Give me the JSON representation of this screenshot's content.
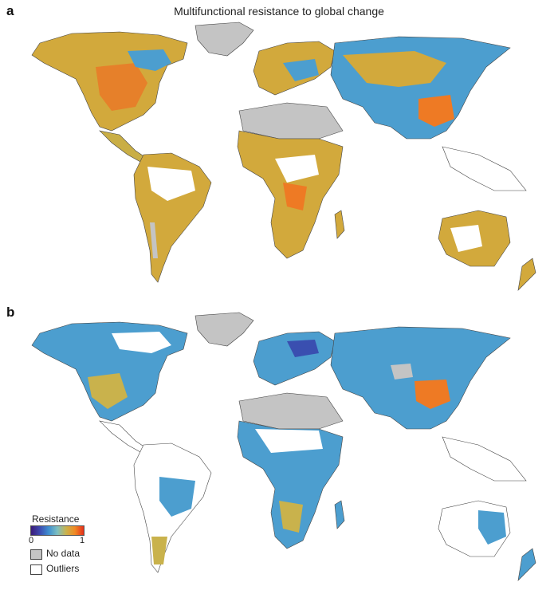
{
  "panels": [
    {
      "letter": "a",
      "title": "Multifunctional resistance to global change"
    },
    {
      "letter": "b",
      "title": ""
    }
  ],
  "legend": {
    "title": "Resistance",
    "min_label": "0",
    "max_label": "1",
    "nodata_label": "No data",
    "outliers_label": "Outliers",
    "colors": {
      "low": "#3b1a78",
      "mid": "#3f8fd0",
      "high": "#e6301c",
      "nodata": "#c4c4c4",
      "outliers": "#ffffff"
    }
  },
  "map_colors": {
    "land_a": "#d2a93c",
    "land_b": "#4c9ecf",
    "hot": "#ee7a24",
    "cool": "#3f8fd0",
    "deep": "#3a4fb0",
    "nodata": "#c4c4c4",
    "border": "#444444"
  }
}
